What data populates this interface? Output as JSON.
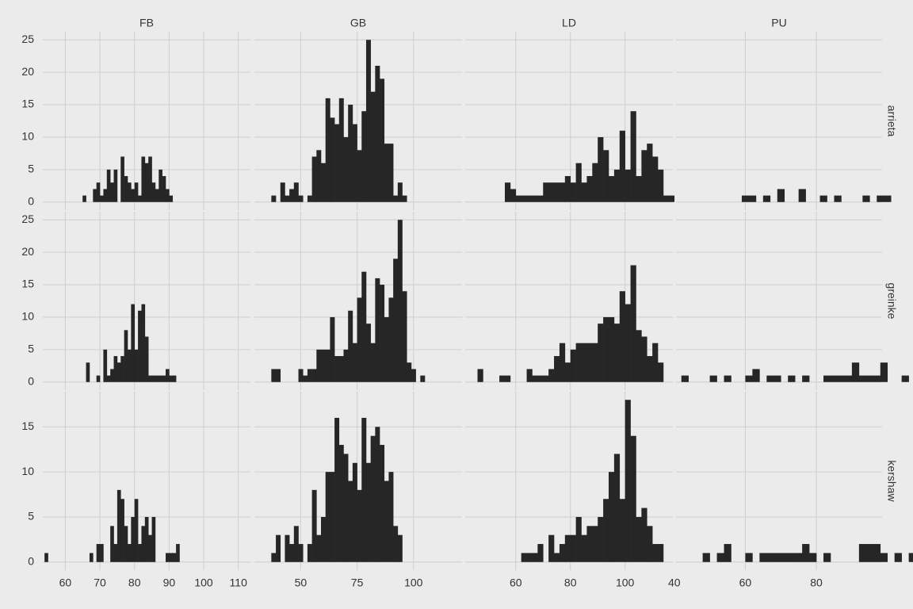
{
  "chart_data": {
    "type": "bar",
    "subtype": "histogram-facet-grid",
    "title": "",
    "xlabel": "",
    "ylabel": "",
    "grid": true,
    "bar_color": "#262626",
    "background_color": "#ebebeb",
    "grid_color": "#d0d0d0",
    "columns": [
      "FB",
      "GB",
      "LD",
      "PU"
    ],
    "rows": [
      "arrieta",
      "greinke",
      "kershaw"
    ],
    "x_scales": {
      "FB": {
        "xlim": [
          53.5,
          113.5
        ],
        "ticks": [
          60,
          70,
          80,
          90,
          100,
          110
        ]
      },
      "GB": {
        "xlim": [
          29.5,
          121.5
        ],
        "ticks": [
          50,
          75,
          100
        ]
      },
      "LD": {
        "xlim": [
          41.5,
          117.5
        ],
        "ticks": [
          60,
          80,
          100
        ]
      },
      "PU": {
        "xlim": [
          40.5,
          98.5
        ],
        "ticks": [
          40,
          60,
          80
        ]
      }
    },
    "y_scales": {
      "arrieta": {
        "ylim": [
          -1.25,
          26.25
        ],
        "ticks": [
          0,
          5,
          10,
          15,
          20,
          25
        ]
      },
      "greinke": {
        "ylim": [
          -1.25,
          26.25
        ],
        "ticks": [
          0,
          5,
          10,
          15,
          20,
          25
        ]
      },
      "kershaw": {
        "ylim": [
          -0.9,
          18.9
        ],
        "ticks": [
          0,
          5,
          10,
          15
        ]
      }
    },
    "panels": [
      {
        "column": "FB",
        "row": "arrieta",
        "bin_width": 1,
        "bin_start": 65,
        "counts": [
          1,
          0,
          0,
          2,
          3,
          1,
          2,
          5,
          3,
          5,
          0,
          7,
          4,
          3,
          2,
          3,
          1,
          7,
          6,
          7,
          3,
          2,
          5,
          4,
          2,
          1
        ]
      },
      {
        "column": "GB",
        "row": "arrieta",
        "bin_width": 2,
        "bin_start": 37,
        "counts": [
          1,
          0,
          3,
          1,
          2,
          3,
          1,
          0,
          1,
          7,
          8,
          6,
          16,
          13,
          12,
          16,
          10,
          15,
          12,
          8,
          14,
          25,
          17,
          21,
          19,
          9,
          9,
          1,
          3,
          1
        ]
      },
      {
        "column": "LD",
        "row": "arrieta",
        "bin_width": 2,
        "bin_start": 56,
        "counts": [
          3,
          2,
          1,
          1,
          1,
          1,
          1,
          3,
          3,
          3,
          3,
          4,
          3,
          6,
          3,
          4,
          6,
          10,
          8,
          4,
          5,
          11,
          5,
          14,
          4,
          8,
          9,
          7,
          5,
          1,
          1
        ]
      },
      {
        "column": "PU",
        "row": "arrieta",
        "bin_width": 2,
        "bin_start": 59,
        "counts": [
          1,
          1,
          0,
          1,
          0,
          2,
          0,
          0,
          2,
          0,
          0,
          1,
          0,
          1,
          0,
          0,
          0,
          1,
          0,
          1,
          1
        ]
      },
      {
        "column": "FB",
        "row": "greinke",
        "bin_width": 1,
        "bin_start": 66,
        "counts": [
          3,
          0,
          0,
          1,
          0,
          5,
          1,
          2,
          4,
          3,
          4,
          8,
          5,
          12,
          5,
          11,
          12,
          7,
          1,
          1,
          1,
          1,
          1,
          2,
          1,
          1
        ]
      },
      {
        "column": "GB",
        "row": "greinke",
        "bin_width": 2,
        "bin_start": 37,
        "counts": [
          2,
          2,
          0,
          0,
          0,
          0,
          2,
          1,
          2,
          2,
          5,
          5,
          5,
          10,
          4,
          4,
          5,
          11,
          6,
          13,
          17,
          9,
          6,
          16,
          15,
          10,
          13,
          19,
          25,
          14,
          3,
          2,
          0,
          1
        ]
      },
      {
        "column": "LD",
        "row": "greinke",
        "bin_width": 2,
        "bin_start": 46,
        "counts": [
          2,
          0,
          0,
          0,
          1,
          1,
          0,
          0,
          0,
          2,
          1,
          1,
          1,
          2,
          4,
          6,
          3,
          5,
          6,
          6,
          6,
          6,
          9,
          10,
          10,
          9,
          14,
          12,
          18,
          8,
          7,
          4,
          6,
          3
        ]
      },
      {
        "column": "PU",
        "row": "greinke",
        "bin_width": 2,
        "bin_start": 42,
        "counts": [
          1,
          0,
          0,
          0,
          1,
          0,
          1,
          0,
          0,
          1,
          2,
          0,
          1,
          1,
          0,
          1,
          0,
          1,
          0,
          0,
          1,
          1,
          1,
          1,
          3,
          1,
          1,
          1,
          3,
          0,
          0,
          1
        ]
      },
      {
        "column": "FB",
        "row": "kershaw",
        "bin_width": 1,
        "bin_start": 54,
        "counts": [
          1,
          0,
          0,
          0,
          0,
          0,
          0,
          0,
          0,
          0,
          0,
          0,
          0,
          1,
          0,
          2,
          2,
          0,
          0,
          4,
          2,
          8,
          7,
          4,
          2,
          5,
          7,
          2,
          4,
          5,
          3,
          5,
          0,
          0,
          0,
          1,
          1,
          1,
          2
        ]
      },
      {
        "column": "GB",
        "row": "kershaw",
        "bin_width": 2,
        "bin_start": 37,
        "counts": [
          1,
          3,
          0,
          3,
          2,
          4,
          2,
          0,
          2,
          8,
          3,
          5,
          10,
          10,
          16,
          13,
          12,
          9,
          11,
          8,
          16,
          11,
          14,
          15,
          13,
          9,
          10,
          4,
          3
        ]
      },
      {
        "column": "LD",
        "row": "kershaw",
        "bin_width": 2,
        "bin_start": 62,
        "counts": [
          1,
          1,
          1,
          2,
          0,
          3,
          1,
          2,
          3,
          3,
          5,
          3,
          4,
          4,
          5,
          7,
          10,
          12,
          7,
          18,
          14,
          5,
          6,
          4,
          2,
          2
        ]
      },
      {
        "column": "PU",
        "row": "kershaw",
        "bin_width": 2,
        "bin_start": 48,
        "counts": [
          1,
          0,
          1,
          2,
          0,
          0,
          1,
          0,
          1,
          1,
          1,
          1,
          1,
          1,
          2,
          1,
          0,
          1,
          0,
          0,
          0,
          0,
          2,
          2,
          2,
          1,
          0,
          1,
          0,
          1,
          1
        ]
      }
    ]
  }
}
